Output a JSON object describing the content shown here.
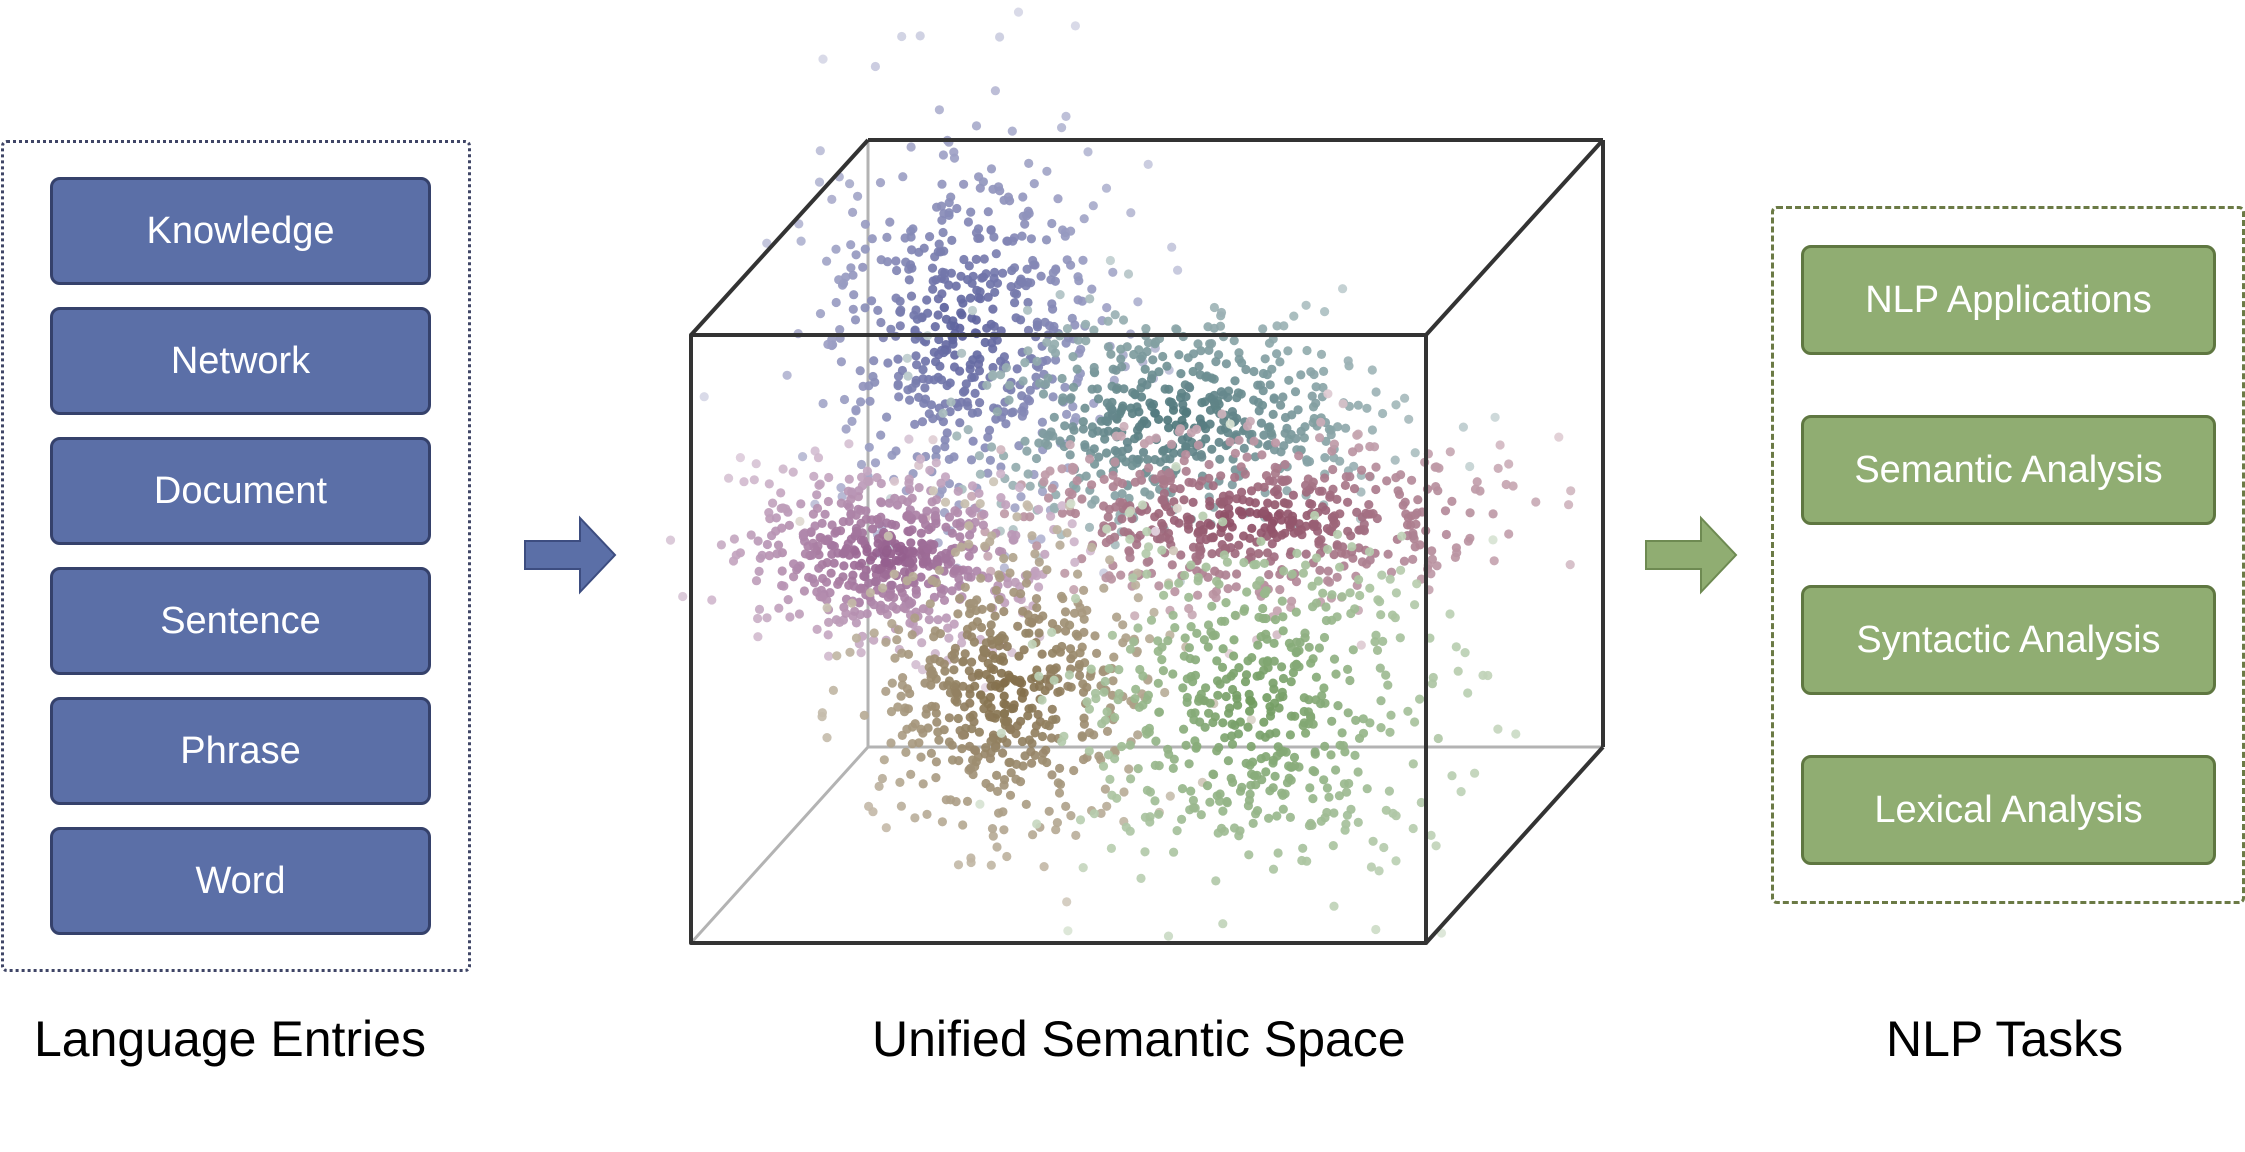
{
  "language_entries": {
    "caption": "Language Entries",
    "items": [
      "Knowledge",
      "Network",
      "Document",
      "Sentence",
      "Phrase",
      "Word"
    ],
    "fill_color": "#5b6fa7"
  },
  "semantic_space": {
    "caption": "Unified Semantic Space",
    "clusters": [
      {
        "color": "#5a5f9c"
      },
      {
        "color": "#4b7478"
      },
      {
        "color": "#8a4860"
      },
      {
        "color": "#915a8a"
      },
      {
        "color": "#7f6a45"
      },
      {
        "color": "#6f9a5e"
      }
    ]
  },
  "nlp_tasks": {
    "caption": "NLP Tasks",
    "items": [
      "NLP Applications",
      "Semantic Analysis",
      "Syntactic Analysis",
      "Lexical Analysis"
    ],
    "fill_color": "#90ad72"
  },
  "arrows": {
    "left_color": "#5b6fa7",
    "right_color": "#90ad72"
  }
}
